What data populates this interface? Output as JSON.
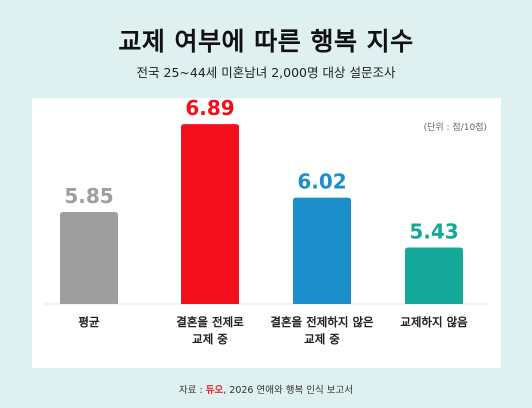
{
  "title": "교제 여부에 따른 행복 지수",
  "subtitle": "전국 25~44세 미혼남녀 2,000명 대상 설문조사",
  "unit_note": "(단위 : 점/10점)",
  "source": {
    "prefix": "자료 : ",
    "brand": "듀오",
    "text": ", 2026 연애와 행복 인식 보고서"
  },
  "colors": {
    "background": "#dff0f0",
    "bar1": "#9e9e9e",
    "bar2": "#f20f1b",
    "bar3": "#1c8fcb",
    "bar4": "#15a898"
  },
  "chart_data": {
    "type": "bar",
    "categories": [
      "평균",
      "결혼을 전제로 교제 중",
      "결혼을 전제하지 않은 교제 중",
      "교제하지 않음"
    ],
    "category_lines": [
      [
        "평균"
      ],
      [
        "결혼을 전제로",
        "교제 중"
      ],
      [
        "결혼을 전제하지 않은",
        "교제 중"
      ],
      [
        "교제하지 않음"
      ]
    ],
    "values": [
      5.85,
      6.89,
      6.02,
      5.43
    ],
    "value_labels": [
      "5.85",
      "6.89",
      "6.02",
      "5.43"
    ],
    "colors": [
      "#9e9e9e",
      "#f20f1b",
      "#1c8fcb",
      "#15a898"
    ],
    "ylabel": "",
    "xlabel": "",
    "grid": false
  }
}
